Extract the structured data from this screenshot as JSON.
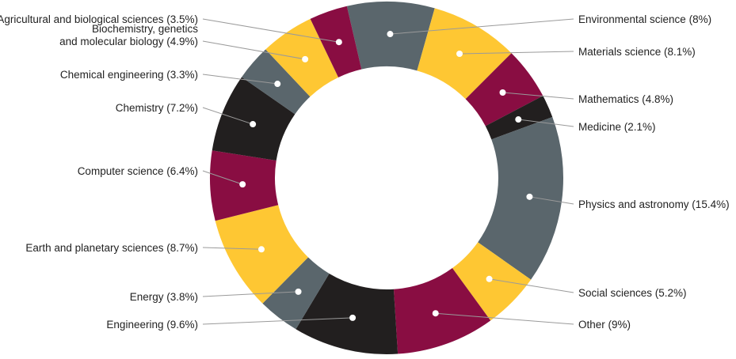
{
  "chart_data": {
    "type": "pie",
    "title": "",
    "donut": true,
    "legend": "none (callout labels)",
    "slices": [
      {
        "label": "Environmental science (8%)",
        "value": 8.0,
        "color": "#5a666c"
      },
      {
        "label": "Materials science (8.1%)",
        "value": 8.1,
        "color": "#fec733"
      },
      {
        "label": "Mathematics (4.8%)",
        "value": 4.8,
        "color": "#890d42"
      },
      {
        "label": "Medicine (2.1%)",
        "value": 2.1,
        "color": "#221f1f"
      },
      {
        "label": "Physics and astronomy (15.4%)",
        "value": 15.4,
        "color": "#5a666c"
      },
      {
        "label": "Social sciences (5.2%)",
        "value": 5.2,
        "color": "#fec733"
      },
      {
        "label": "Other (9%)",
        "value": 9.0,
        "color": "#890d42"
      },
      {
        "label": "Engineering (9.6%)",
        "value": 9.6,
        "color": "#221f1f"
      },
      {
        "label": "Energy (3.8%)",
        "value": 3.8,
        "color": "#5a666c"
      },
      {
        "label": "Earth and planetary sciences (8.7%)",
        "value": 8.7,
        "color": "#fec733"
      },
      {
        "label": "Computer science (6.4%)",
        "value": 6.4,
        "color": "#890d42"
      },
      {
        "label": "Chemistry (7.2%)",
        "value": 7.2,
        "color": "#221f1f"
      },
      {
        "label": "Chemical engineering (3.3%)",
        "value": 3.3,
        "color": "#5a666c"
      },
      {
        "label": "Biochemistry, genetics\nand molecular biology (4.9%)",
        "value": 4.9,
        "color": "#fec733"
      },
      {
        "label": "Agricultural and biological sciences (3.5%)",
        "value": 3.5,
        "color": "#890d42"
      }
    ]
  }
}
